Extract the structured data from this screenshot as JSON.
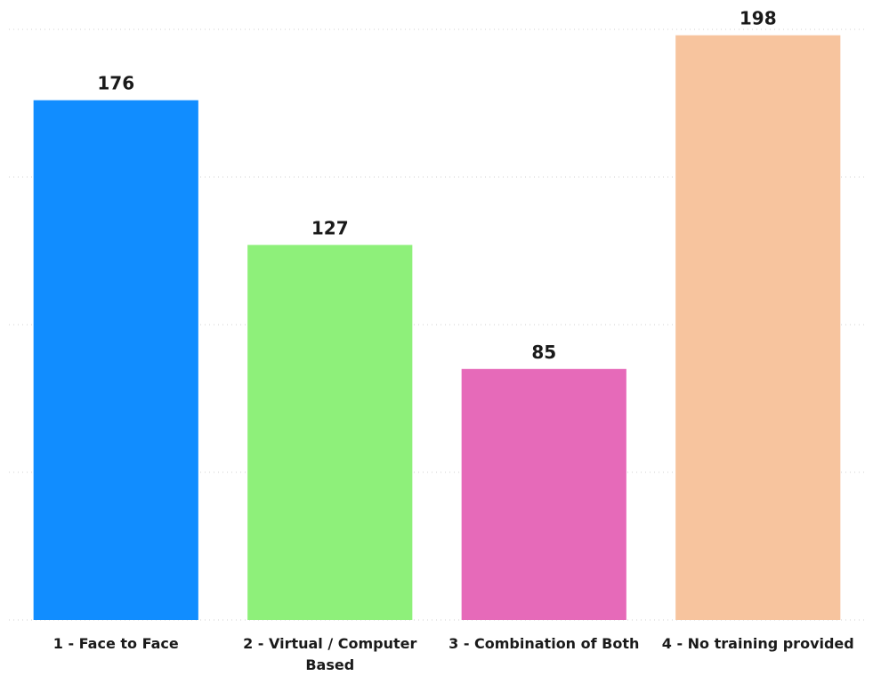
{
  "chart_data": {
    "type": "bar",
    "categories": [
      "1 - Face to Face",
      "2 - Virtual / Computer Based",
      "3 - Combination of Both",
      "4 - No training provided"
    ],
    "values": [
      176,
      127,
      85,
      198
    ],
    "colors": [
      "#118dff",
      "#8ef07a",
      "#e66ab9",
      "#f7c49e"
    ],
    "ylim": [
      0,
      200
    ],
    "yticks": [
      0,
      50,
      100,
      150,
      200
    ],
    "grid": true
  }
}
